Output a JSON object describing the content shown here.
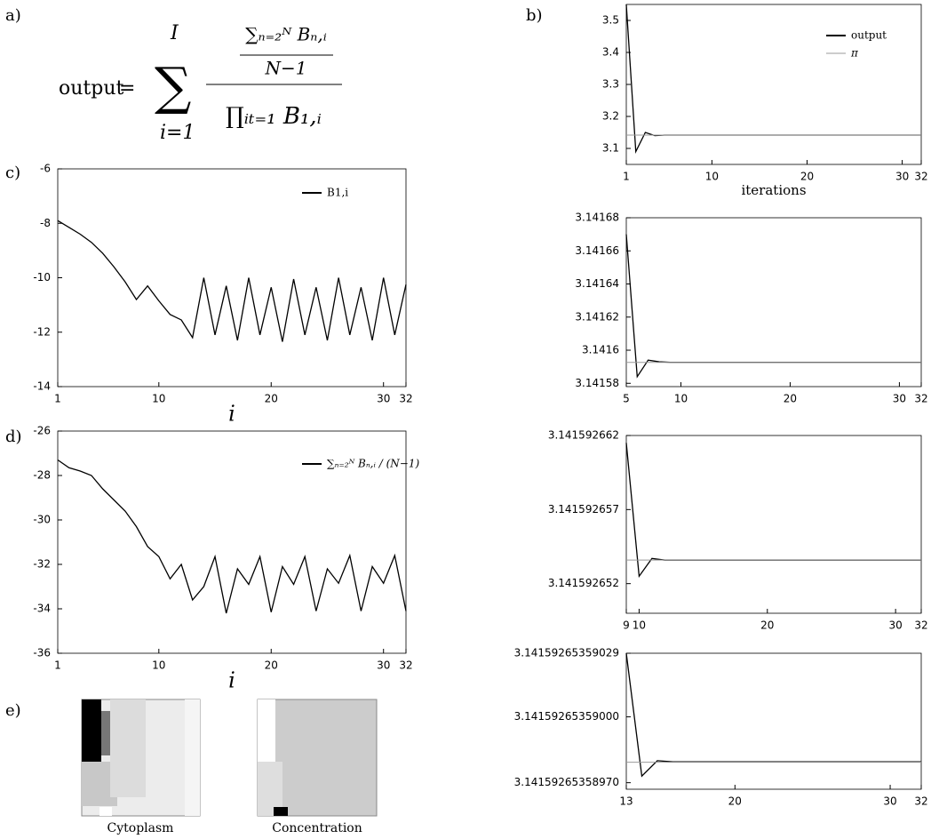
{
  "panels": {
    "a": "a)",
    "b": "b)",
    "c": "c)",
    "d": "d)",
    "e": "e)"
  },
  "formula": {
    "lhs": "output",
    "eq": "=",
    "sum": "∑",
    "sum_upper": "I",
    "sum_lower": "i=1",
    "num_top": "∑ₙ₌₂ᴺ Bₙ,ᵢ",
    "num_bottom": "N−1",
    "denominator": "∏ᵢₜ₌₁ B₁,ᵢ"
  },
  "images": [
    {
      "caption": "Cytoplasm"
    },
    {
      "caption": "Concentration"
    }
  ],
  "chart_data": [
    {
      "type": "line",
      "xlabel": "i",
      "legend": "upper right",
      "xlim": [
        1,
        32
      ],
      "xticks": [
        1,
        10,
        20,
        30,
        32
      ],
      "ylim": [
        -14,
        -6
      ],
      "yticks": [
        -14,
        -12,
        -10,
        -8,
        -6
      ],
      "x": [
        1,
        2,
        3,
        4,
        5,
        6,
        7,
        8,
        9,
        10,
        11,
        12,
        13,
        14,
        15,
        16,
        17,
        18,
        19,
        20,
        21,
        22,
        23,
        24,
        25,
        26,
        27,
        28,
        29,
        30,
        31,
        32
      ],
      "series": [
        {
          "name": "B1,i",
          "color": "#000000",
          "values": [
            -7.9,
            -8.15,
            -8.4,
            -8.7,
            -9.1,
            -9.6,
            -10.15,
            -10.8,
            -10.3,
            -10.85,
            -11.35,
            -11.55,
            -12.2,
            -10.0,
            -12.1,
            -10.3,
            -12.3,
            -10.0,
            -12.1,
            -10.35,
            -12.35,
            -10.05,
            -12.1,
            -10.35,
            -12.3,
            -10.0,
            -12.1,
            -10.35,
            -12.3,
            -10.0,
            -12.1,
            -10.25
          ]
        }
      ]
    },
    {
      "type": "line",
      "xlabel": "i",
      "legend": "upper right",
      "xlim": [
        1,
        32
      ],
      "xticks": [
        1,
        10,
        20,
        30,
        32
      ],
      "ylim": [
        -36,
        -26
      ],
      "yticks": [
        -36,
        -34,
        -32,
        -30,
        -28,
        -26
      ],
      "x": [
        1,
        2,
        3,
        4,
        5,
        6,
        7,
        8,
        9,
        10,
        11,
        12,
        13,
        14,
        15,
        16,
        17,
        18,
        19,
        20,
        21,
        22,
        23,
        24,
        25,
        26,
        27,
        28,
        29,
        30,
        31,
        32
      ],
      "series": [
        {
          "name": "∑ₙ₌₂ᴺ Bₙ,ᵢ / (N−1)",
          "color": "#000000",
          "values": [
            -27.3,
            -27.65,
            -27.8,
            -28.0,
            -28.6,
            -29.1,
            -29.6,
            -30.3,
            -31.2,
            -31.65,
            -32.65,
            -32.0,
            -33.6,
            -33.0,
            -31.65,
            -34.2,
            -32.2,
            -32.9,
            -31.65,
            -34.15,
            -32.1,
            -32.9,
            -31.65,
            -34.1,
            -32.2,
            -32.85,
            -31.6,
            -34.1,
            -32.1,
            -32.85,
            -31.6,
            -34.1
          ]
        }
      ]
    },
    {
      "type": "line",
      "xlabel": "iterations",
      "legend": "upper right",
      "xlim": [
        1,
        32
      ],
      "xticks": [
        1,
        10,
        20,
        30,
        32
      ],
      "ylim": [
        3.05,
        3.55
      ],
      "yticks": [
        3.1,
        3.2,
        3.3,
        3.4,
        3.5
      ],
      "series": [
        {
          "name": "output",
          "color": "#000000",
          "x": [
            1,
            2,
            3,
            4,
            5,
            32
          ],
          "values": [
            3.55,
            3.09,
            3.15,
            3.14,
            3.1416,
            3.1416
          ]
        },
        {
          "name": "π",
          "color": "#999999",
          "x": [
            1,
            32
          ],
          "values": [
            3.14159,
            3.14159
          ]
        }
      ]
    },
    {
      "type": "line",
      "xlim": [
        5,
        32
      ],
      "xticks": [
        5,
        10,
        20,
        30,
        32
      ],
      "ylim": [
        3.141578,
        3.14168
      ],
      "yticks": [
        3.14158,
        3.1416,
        3.14162,
        3.14164,
        3.14166,
        3.14168
      ],
      "series": [
        {
          "name": "output",
          "color": "#000000",
          "x": [
            5,
            6,
            7,
            8,
            9,
            32
          ],
          "values": [
            3.14167,
            3.141584,
            3.141594,
            3.141593,
            3.1415927,
            3.1415927
          ]
        },
        {
          "name": "π",
          "color": "#999999",
          "x": [
            5,
            32
          ],
          "values": [
            3.14159265,
            3.14159265
          ]
        }
      ]
    },
    {
      "type": "line",
      "xlim": [
        9,
        32
      ],
      "xticks": [
        9,
        10,
        20,
        30,
        32
      ],
      "ylim": [
        3.14159265,
        3.141592662
      ],
      "yticks": [
        3.141592652,
        3.141592657,
        3.141592662
      ],
      "series": [
        {
          "name": "output",
          "color": "#000000",
          "x": [
            9,
            10,
            11,
            12,
            32
          ],
          "values": [
            3.1415926615,
            3.1415926525,
            3.1415926537,
            3.14159265359,
            3.14159265359
          ]
        },
        {
          "name": "π",
          "color": "#999999",
          "x": [
            9,
            32
          ],
          "values": [
            3.14159265359,
            3.14159265359
          ]
        }
      ]
    },
    {
      "type": "line",
      "xlim": [
        13,
        32
      ],
      "xticks": [
        13,
        20,
        30,
        32
      ],
      "ylim": [
        3.14159265358967,
        3.14159265359029
      ],
      "yticks": [
        {
          "value": 3.1415926535897,
          "label": "3.14159265358970"
        },
        {
          "value": 3.14159265359,
          "label": "3.14159265359000"
        },
        3.14159265359029
      ],
      "series": [
        {
          "name": "output",
          "color": "#000000",
          "x": [
            13,
            14,
            15,
            16,
            32
          ],
          "values": [
            3.14159265359029,
            3.14159265358973,
            3.1415926535898,
            3.141592653589795,
            3.141592653589795
          ]
        },
        {
          "name": "π",
          "color": "#999999",
          "x": [
            13,
            32
          ],
          "values": [
            3.141592653589793,
            3.141592653589793
          ]
        }
      ]
    }
  ]
}
